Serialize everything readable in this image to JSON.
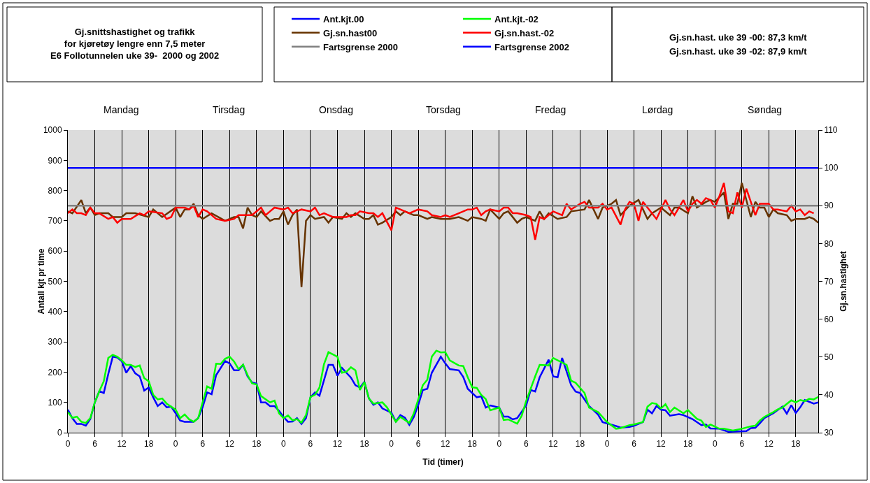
{
  "chart_data": {
    "type": "line",
    "title": "Gj.snittshastighet og trafikk\nfor kjøretøy lengre enn 7,5 meter\nE6 Follotunnelen uke 39-  2000 og 2002",
    "xlabel": "Tid (timer)",
    "ylabel": "Antall kjt pr time",
    "y2label": "Gj.sn.hastighet",
    "annotations": [
      "Gj.sn.hast. uke 39 -00: 87,3 km/t",
      "Gj.sn.hast. uke 39 -02: 87,9 km/t",
      "Mandag",
      "Tirsdag",
      "Onsdag",
      "Torsdag",
      "Fredag",
      "Lørdag",
      "Søndag"
    ],
    "xlim": [
      "--09-25T00:00",
      "--10-01T23:00"
    ],
    "xticks": [
      {
        "value": "--09-25T00:00",
        "label": "0"
      },
      {
        "value": "--09-25T06:00",
        "label": "6"
      },
      {
        "value": "--09-25T12:00",
        "label": "12"
      },
      {
        "value": "--09-25T18:00",
        "label": "18"
      },
      {
        "value": "--09-26T00:00",
        "label": "0"
      },
      {
        "value": "--09-26T06:00",
        "label": "6"
      },
      {
        "value": "--09-26T12:00",
        "label": "12"
      },
      {
        "value": "--09-26T18:00",
        "label": "18"
      },
      {
        "value": "--09-27T00:00",
        "label": "0"
      },
      {
        "value": "--09-27T06:00",
        "label": "6"
      },
      {
        "value": "--09-27T12:00",
        "label": "12"
      },
      {
        "value": "--09-27T18:00",
        "label": "18"
      },
      {
        "value": "--09-28T00:00",
        "label": "0"
      },
      {
        "value": "--09-28T06:00",
        "label": "6"
      },
      {
        "value": "--09-28T12:00",
        "label": "12"
      },
      {
        "value": "--09-28T18:00",
        "label": "18"
      },
      {
        "value": "--09-29T00:00",
        "label": "0"
      },
      {
        "value": "--09-29T06:00",
        "label": "6"
      },
      {
        "value": "--09-29T12:00",
        "label": "12"
      },
      {
        "value": "--09-29T18:00",
        "label": "18"
      },
      {
        "value": "--09-30T00:00",
        "label": "0"
      },
      {
        "value": "--09-30T06:00",
        "label": "6"
      },
      {
        "value": "--09-30T12:00",
        "label": "12"
      },
      {
        "value": "--09-30T18:00",
        "label": "18"
      },
      {
        "value": "--10-01T00:00",
        "label": "0"
      },
      {
        "value": "--10-01T06:00",
        "label": "6"
      },
      {
        "value": "--10-01T12:00",
        "label": "12"
      },
      {
        "value": "--10-01T18:00",
        "label": "18"
      }
    ],
    "ylim": [
      0,
      1000
    ],
    "yticks": [
      0,
      100,
      200,
      300,
      400,
      500,
      600,
      700,
      800,
      900,
      1000
    ],
    "y2lim": [
      30,
      110
    ],
    "y2ticks": [
      30,
      40,
      50,
      60,
      70,
      80,
      90,
      100,
      110
    ],
    "grid": "x",
    "legend": "top",
    "series": [
      {
        "name": "Ant.kjt.00",
        "color": "#0000ff",
        "x": [
          "--09-25T00:00",
          "--09-25T01:00",
          "--09-25T02:00",
          "--09-25T03:00",
          "--09-25T04:00",
          "--09-25T05:00",
          "--09-25T06:00",
          "--09-25T07:00",
          "--09-25T08:00",
          "--09-25T09:00",
          "--09-25T10:00",
          "--09-25T11:00",
          "--09-25T12:00",
          "--09-25T13:00",
          "--09-25T14:00",
          "--09-25T15:00",
          "--09-25T16:00",
          "--09-25T17:00",
          "--09-25T18:00",
          "--09-25T19:00",
          "--09-25T20:00",
          "--09-25T21:00",
          "--09-25T22:00",
          "--09-25T23:00",
          "--09-26T00:00",
          "--09-26T01:00",
          "--09-26T02:00",
          "--09-26T04:00",
          "--09-26T05:00",
          "--09-26T06:00",
          "--09-26T07:00",
          "--09-26T08:00",
          "--09-26T09:00",
          "--09-26T11:00",
          "--09-26T12:00",
          "--09-26T13:00",
          "--09-26T14:00",
          "--09-26T15:00",
          "--09-26T16:00",
          "--09-26T17:00",
          "--09-26T18:00",
          "--09-26T19:00",
          "--09-26T20:00",
          "--09-26T21:00",
          "--09-26T22:00",
          "--09-26T23:00",
          "--09-27T00:00",
          "--09-27T01:00",
          "--09-27T02:00",
          "--09-27T03:00",
          "--09-27T04:00",
          "--09-27T05:00",
          "--09-27T06:00",
          "--09-27T07:00",
          "--09-27T08:00",
          "--09-27T10:00",
          "--09-27T11:00",
          "--09-27T12:00",
          "--09-27T13:00",
          "--09-27T15:00",
          "--09-27T16:00",
          "--09-27T17:00",
          "--09-27T18:00",
          "--09-27T19:00",
          "--09-27T20:00",
          "--09-27T21:00",
          "--09-27T22:00",
          "--09-28T00:00",
          "--09-28T01:00",
          "--09-28T02:00",
          "--09-28T03:00",
          "--09-28T04:00",
          "--09-28T05:00",
          "--09-28T06:00",
          "--09-28T07:00",
          "--09-28T08:00",
          "--09-28T09:00",
          "--09-28T11:00",
          "--09-28T12:00",
          "--09-28T13:00",
          "--09-28T15:00",
          "--09-28T16:00",
          "--09-28T17:00",
          "--09-28T19:00",
          "--09-28T20:00",
          "--09-28T21:00",
          "--09-28T22:00",
          "--09-29T00:00",
          "--09-29T01:00",
          "--09-29T02:00",
          "--09-29T03:00",
          "--09-29T04:00",
          "--09-29T06:00",
          "--09-29T07:00",
          "--09-29T08:00",
          "--09-29T09:00",
          "--09-29T11:00",
          "--09-29T12:00",
          "--09-29T13:00",
          "--09-29T14:00",
          "--09-29T16:00",
          "--09-29T17:00",
          "--09-29T18:00",
          "--09-29T20:00",
          "--09-29T22:00",
          "--09-29T23:00",
          "--09-30T02:00",
          "--09-30T03:00",
          "--09-30T05:00",
          "--09-30T06:00",
          "--09-30T08:00",
          "--09-30T09:00",
          "--09-30T10:00",
          "--09-30T11:00",
          "--09-30T12:00",
          "--09-30T13:00",
          "--09-30T14:00",
          "--09-30T16:00",
          "--09-30T17:00",
          "--09-30T19:00",
          "--09-30T21:00",
          "--09-30T22:00",
          "--09-30T23:00",
          "--10-01T01:00",
          "--10-01T03:00",
          "--10-01T07:00",
          "--10-01T08:00",
          "--10-01T09:00",
          "--10-01T10:00",
          "--10-01T11:00",
          "--10-01T13:00",
          "--10-01T15:00",
          "--10-01T16:00",
          "--10-01T17:00",
          "--10-01T18:00",
          "--10-01T19:00",
          "--10-01T20:00",
          "--10-01T22:00",
          "--10-01T23:00"
        ],
        "values": [
          76,
          48,
          29,
          29,
          23,
          45,
          100,
          137,
          131,
          194,
          251,
          248,
          236,
          198,
          220,
          196,
          186,
          139,
          149,
          117,
          88,
          100,
          84,
          86,
          64,
          40,
          36,
          36,
          48,
          84,
          133,
          127,
          190,
          237,
          229,
          206,
          206,
          224,
          186,
          166,
          162,
          100,
          100,
          88,
          88,
          72,
          52,
          36,
          37,
          48,
          29,
          48,
          117,
          133,
          122,
          224,
          224,
          188,
          214,
          182,
          157,
          149,
          168,
          113,
          92,
          100,
          80,
          66,
          37,
          58,
          50,
          26,
          52,
          92,
          141,
          145,
          198,
          251,
          229,
          210,
          206,
          184,
          145,
          117,
          120,
          83,
          90,
          83,
          53,
          53,
          44,
          48,
          90,
          141,
          136,
          183,
          241,
          186,
          183,
          247,
          157,
          136,
          131,
          88,
          60,
          35,
          22,
          17,
          19,
          23,
          35,
          76,
          64,
          88,
          76,
          74,
          56,
          61,
          58,
          45,
          25,
          27,
          14,
          13,
          3,
          5,
          15,
          16,
          31,
          48,
          64,
          86,
          63,
          91,
          65,
          84,
          108,
          96,
          100
        ]
      },
      {
        "name": "Ant.kjt.-02",
        "color": "#00ff00",
        "x": [
          "--09-25T00:00",
          "--09-25T01:00",
          "--09-25T02:00",
          "--09-25T03:00",
          "--09-25T04:00",
          "--09-25T05:00",
          "--09-25T06:00",
          "--09-25T07:00",
          "--09-25T08:00",
          "--09-25T09:00",
          "--09-25T10:00",
          "--09-25T11:00",
          "--09-25T12:00",
          "--09-25T13:00",
          "--09-25T14:00",
          "--09-25T15:00",
          "--09-25T16:00",
          "--09-25T17:00",
          "--09-25T18:00",
          "--09-25T19:00",
          "--09-25T20:00",
          "--09-25T21:00",
          "--09-25T22:00",
          "--09-26T00:00",
          "--09-26T01:00",
          "--09-26T02:00",
          "--09-26T03:00",
          "--09-26T04:00",
          "--09-26T05:00",
          "--09-26T07:00",
          "--09-26T08:00",
          "--09-26T09:00",
          "--09-26T10:00",
          "--09-26T11:00",
          "--09-26T12:00",
          "--09-26T13:00",
          "--09-26T14:00",
          "--09-26T15:00",
          "--09-26T16:00",
          "--09-26T17:00",
          "--09-26T18:00",
          "--09-26T19:00",
          "--09-26T21:00",
          "--09-26T22:00",
          "--09-26T23:00",
          "--09-27T00:00",
          "--09-27T01:00",
          "--09-27T02:00",
          "--09-27T03:00",
          "--09-27T04:00",
          "--09-27T05:00",
          "--09-27T06:00",
          "--09-27T07:00",
          "--09-27T08:00",
          "--09-27T09:00",
          "--09-27T10:00",
          "--09-27T12:00",
          "--09-27T13:00",
          "--09-27T14:00",
          "--09-27T15:00",
          "--09-27T16:00",
          "--09-27T17:00",
          "--09-27T18:00",
          "--09-27T19:00",
          "--09-27T20:00",
          "--09-27T22:00",
          "--09-27T23:00",
          "--09-28T01:00",
          "--09-28T02:00",
          "--09-28T04:00",
          "--09-28T05:00",
          "--09-28T07:00",
          "--09-28T08:00",
          "--09-28T09:00",
          "--09-28T10:00",
          "--09-28T11:00",
          "--09-28T12:00",
          "--09-28T13:00",
          "--09-28T15:00",
          "--09-28T16:00",
          "--09-28T17:00",
          "--09-28T18:00",
          "--09-28T19:00",
          "--09-28T20:00",
          "--09-28T21:00",
          "--09-28T22:00",
          "--09-29T00:00",
          "--09-29T01:00",
          "--09-29T02:00",
          "--09-29T04:00",
          "--09-29T05:00",
          "--09-29T06:00",
          "--09-29T08:00",
          "--09-29T09:00",
          "--09-29T11:00",
          "--09-29T12:00",
          "--09-29T15:00",
          "--09-29T16:00",
          "--09-29T17:00",
          "--09-29T19:00",
          "--09-29T20:00",
          "--09-29T22:00",
          "--09-29T23:00",
          "--09-30T00:00",
          "--09-30T02:00",
          "--09-30T03:00",
          "--09-30T05:00",
          "--09-30T06:00",
          "--09-30T08:00",
          "--09-30T09:00",
          "--09-30T10:00",
          "--09-30T11:00",
          "--09-30T12:00",
          "--09-30T13:00",
          "--09-30T14:00",
          "--09-30T15:00",
          "--09-30T17:00",
          "--09-30T18:00",
          "--09-30T20:00",
          "--09-30T21:00",
          "--09-30T22:00",
          "--09-30T23:00",
          "--10-01T01:00",
          "--10-01T02:00",
          "--10-01T04:00",
          "--10-01T06:00",
          "--10-01T08:00",
          "--10-01T09:00",
          "--10-01T10:00",
          "--10-01T11:00",
          "--10-01T13:00",
          "--10-01T14:00",
          "--10-01T15:00",
          "--10-01T17:00",
          "--10-01T18:00",
          "--10-01T19:00",
          "--10-01T20:00",
          "--10-01T21:00",
          "--10-01T22:00",
          "--10-01T23:00"
        ],
        "values": [
          68,
          49,
          53,
          36,
          32,
          48,
          100,
          137,
          170,
          247,
          257,
          251,
          239,
          224,
          224,
          217,
          222,
          180,
          170,
          125,
          110,
          113,
          96,
          76,
          48,
          60,
          44,
          36,
          48,
          153,
          145,
          228,
          227,
          244,
          251,
          235,
          210,
          225,
          190,
          163,
          159,
          121,
          100,
          106,
          64,
          48,
          57,
          41,
          45,
          33,
          58,
          118,
          125,
          149,
          226,
          266,
          251,
          198,
          201,
          216,
          206,
          141,
          167,
          113,
          96,
          100,
          84,
          36,
          52,
          32,
          64,
          157,
          175,
          251,
          271,
          265,
          266,
          239,
          222,
          220,
          183,
          150,
          148,
          125,
          111,
          74,
          83,
          42,
          44,
          30,
          56,
          105,
          186,
          224,
          222,
          247,
          224,
          172,
          165,
          131,
          83,
          68,
          52,
          35,
          13,
          15,
          25,
          27,
          35,
          86,
          98,
          95,
          80,
          94,
          68,
          83,
          64,
          75,
          46,
          40,
          19,
          27,
          13,
          13,
          7,
          13,
          21,
          23,
          40,
          52,
          68,
          77,
          83,
          107,
          100,
          108,
          104,
          112,
          110,
          118
        ]
      },
      {
        "name": "Gj.sn.hast00",
        "color": "#663300",
        "axis": "y2",
        "x": [
          "--09-25T00:00",
          "--09-25T01:00",
          "--09-25T03:00",
          "--09-25T04:00",
          "--09-25T05:00",
          "--09-25T06:00",
          "--09-25T07:00",
          "--09-25T09:00",
          "--09-25T10:00",
          "--09-25T12:00",
          "--09-25T13:00",
          "--09-25T15:00",
          "--09-25T18:00",
          "--09-25T19:00",
          "--09-25T21:00",
          "--09-26T00:00",
          "--09-26T01:00",
          "--09-26T02:00",
          "--09-26T03:00",
          "--09-26T04:00",
          "--09-26T05:00",
          "--09-26T06:00",
          "--09-26T08:00",
          "--09-26T11:00",
          "--09-26T13:00",
          "--09-26T14:00",
          "--09-26T15:00",
          "--09-26T16:00",
          "--09-26T17:00",
          "--09-26T18:00",
          "--09-26T19:00",
          "--09-26T21:00",
          "--09-26T22:00",
          "--09-26T23:00",
          "--09-27T00:00",
          "--09-27T01:00",
          "--09-27T02:00",
          "--09-27T03:00",
          "--09-27T04:00",
          "--09-27T05:00",
          "--09-27T06:00",
          "--09-27T07:00",
          "--09-27T09:00",
          "--09-27T10:00",
          "--09-27T11:00",
          "--09-27T13:00",
          "--09-27T14:00",
          "--09-27T15:00",
          "--09-27T16:00",
          "--09-27T18:00",
          "--09-27T19:00",
          "--09-27T20:00",
          "--09-27T21:00",
          "--09-27T22:00",
          "--09-28T00:00",
          "--09-28T01:00",
          "--09-28T02:00",
          "--09-28T03:00",
          "--09-28T05:00",
          "--09-28T06:00",
          "--09-28T08:00",
          "--09-28T09:00",
          "--09-28T11:00",
          "--09-28T13:00",
          "--09-28T15:00",
          "--09-28T17:00",
          "--09-28T18:00",
          "--09-28T20:00",
          "--09-28T21:00",
          "--09-28T22:00",
          "--09-29T00:00",
          "--09-29T01:00",
          "--09-29T02:00",
          "--09-29T04:00",
          "--09-29T05:00",
          "--09-29T06:00",
          "--09-29T08:00",
          "--09-29T09:00",
          "--09-29T10:00",
          "--09-29T11:00",
          "--09-29T13:00",
          "--09-29T15:00",
          "--09-29T16:00",
          "--09-29T19:00",
          "--09-29T20:00",
          "--09-29T22:00",
          "--09-29T23:00",
          "--09-30T01:00",
          "--09-30T02:00",
          "--09-30T03:00",
          "--09-30T05:00",
          "--09-30T07:00",
          "--09-30T08:00",
          "--09-30T09:00",
          "--09-30T10:00",
          "--09-30T12:00",
          "--09-30T14:00",
          "--09-30T15:00",
          "--09-30T16:00",
          "--09-30T18:00",
          "--09-30T19:00",
          "--09-30T20:00",
          "--09-30T22:00",
          "--09-30T23:00",
          "--10-01T00:00",
          "--10-01T02:00",
          "--10-01T03:00",
          "--10-01T04:00",
          "--10-01T05:00",
          "--10-01T06:00",
          "--10-01T08:00",
          "--10-01T09:00",
          "--10-01T10:00",
          "--10-01T11:00",
          "--10-01T12:00",
          "--10-01T13:00",
          "--10-01T14:00",
          "--10-01T16:00",
          "--10-01T17:00",
          "--10-01T18:00",
          "--10-01T20:00",
          "--10-01T21:00",
          "--10-01T22:00",
          "--10-01T23:00"
        ],
        "values": [
          88.5,
          88,
          91.5,
          88,
          89.5,
          87.5,
          88,
          88,
          87,
          87,
          88,
          88,
          87,
          89,
          87,
          89.5,
          87,
          89,
          89,
          90.5,
          87.5,
          86.5,
          88,
          86,
          87,
          87,
          84,
          89.5,
          87.5,
          87,
          88.5,
          86,
          86.5,
          86.5,
          88.5,
          85,
          87.5,
          89,
          68.5,
          86,
          87.5,
          86.5,
          87,
          85.5,
          87,
          86.5,
          88,
          87,
          88,
          86.5,
          86.5,
          87.5,
          85,
          85.5,
          87,
          88.5,
          87.5,
          88.5,
          87.5,
          87.5,
          86.5,
          87,
          86.5,
          86.5,
          87,
          86,
          87,
          86.5,
          86,
          89,
          86.5,
          88,
          88.5,
          85.5,
          86.5,
          87,
          86,
          88.5,
          86.5,
          88,
          86.5,
          87,
          88.5,
          89,
          91.5,
          86.5,
          89.5,
          90.5,
          91.5,
          87.5,
          90,
          91.5,
          89,
          86.5,
          88,
          89.5,
          87.5,
          89.5,
          89.5,
          88,
          92.5,
          89.5,
          91,
          91.5,
          91,
          93.5,
          86.5,
          90.5,
          90.5,
          96,
          87,
          91,
          89.5,
          89.5,
          87,
          89,
          88,
          87.5,
          86,
          86.5,
          86.5,
          87,
          86.5,
          85.5
        ]
      },
      {
        "name": "Gj.sn.hast.-02",
        "color": "#ff0000",
        "axis": "y2",
        "x": [
          "--09-25T00:00",
          "--09-25T01:00",
          "--09-25T02:00",
          "--09-25T03:00",
          "--09-25T04:00",
          "--09-25T05:00",
          "--09-25T06:00",
          "--09-25T07:00",
          "--09-25T09:00",
          "--09-25T10:00",
          "--09-25T11:00",
          "--09-25T12:00",
          "--09-25T14:00",
          "--09-25T16:00",
          "--09-25T17:00",
          "--09-25T18:00",
          "--09-25T21:00",
          "--09-25T22:00",
          "--09-25T23:00",
          "--09-26T00:00",
          "--09-26T02:00",
          "--09-26T03:00",
          "--09-26T04:00",
          "--09-26T05:00",
          "--09-26T06:00",
          "--09-26T07:00",
          "--09-26T09:00",
          "--09-26T11:00",
          "--09-26T13:00",
          "--09-26T14:00",
          "--09-26T15:00",
          "--09-26T17:00",
          "--09-26T19:00",
          "--09-26T20:00",
          "--09-26T21:00",
          "--09-26T22:00",
          "--09-27T00:00",
          "--09-27T01:00",
          "--09-27T02:00",
          "--09-27T04:00",
          "--09-27T06:00",
          "--09-27T07:00",
          "--09-27T08:00",
          "--09-27T09:00",
          "--09-27T11:00",
          "--09-27T13:00",
          "--09-27T14:00",
          "--09-27T15:00",
          "--09-27T16:00",
          "--09-27T17:00",
          "--09-27T19:00",
          "--09-27T20:00",
          "--09-27T21:00",
          "--09-27T22:00",
          "--09-28T00:00",
          "--09-28T01:00",
          "--09-28T02:00",
          "--09-28T04:00",
          "--09-28T06:00",
          "--09-28T08:00",
          "--09-28T09:00",
          "--09-28T11:00",
          "--09-28T12:00",
          "--09-28T13:00",
          "--09-28T15:00",
          "--09-28T17:00",
          "--09-28T18:00",
          "--09-28T19:00",
          "--09-28T20:00",
          "--09-28T21:00",
          "--09-28T22:00",
          "--09-29T00:00",
          "--09-29T01:00",
          "--09-29T02:00",
          "--09-29T03:00",
          "--09-29T04:00",
          "--09-29T06:00",
          "--09-29T07:00",
          "--09-29T08:00",
          "--09-29T09:00",
          "--09-29T10:00",
          "--09-29T11:00",
          "--09-29T12:00",
          "--09-29T14:00",
          "--09-29T15:00",
          "--09-29T16:00",
          "--09-29T18:00",
          "--09-29T19:00",
          "--09-29T20:00",
          "--09-29T22:00",
          "--09-29T23:00",
          "--09-30T00:00",
          "--09-30T01:00",
          "--09-30T03:00",
          "--09-30T04:00",
          "--09-30T05:00",
          "--09-30T06:00",
          "--09-30T07:00",
          "--09-30T08:00",
          "--09-30T09:00",
          "--09-30T11:00",
          "--09-30T13:00",
          "--09-30T14:00",
          "--09-30T15:00",
          "--09-30T17:00",
          "--09-30T18:00",
          "--09-30T19:00",
          "--09-30T20:00",
          "--09-30T21:00",
          "--09-30T22:00",
          "--09-30T23:00",
          "--10-01T00:00",
          "--10-01T01:00",
          "--10-01T02:00",
          "--10-01T03:00",
          "--10-01T04:00",
          "--10-01T05:00",
          "--10-01T06:00",
          "--10-01T07:00",
          "--10-01T09:00",
          "--10-01T10:00",
          "--10-01T12:00",
          "--10-01T13:00",
          "--10-01T14:00",
          "--10-01T16:00",
          "--10-01T17:00",
          "--10-01T18:00",
          "--10-01T19:00",
          "--10-01T20:00",
          "--10-01T21:00",
          "--10-01T22:00"
        ],
        "values": [
          88,
          89,
          88,
          88,
          87.5,
          89.5,
          88,
          88,
          86.5,
          87,
          85.5,
          86.5,
          86.5,
          88,
          87.5,
          88.5,
          88,
          86.5,
          87,
          89.5,
          89.5,
          89,
          90,
          87,
          89,
          88.5,
          86.5,
          86,
          86.5,
          87.5,
          87.5,
          87.5,
          89.5,
          87.5,
          88.5,
          89.5,
          89,
          89.5,
          88,
          89,
          88.5,
          89.5,
          87.5,
          88,
          87,
          87,
          87,
          87.5,
          87.5,
          88.5,
          88,
          88,
          87,
          88,
          83.5,
          89.5,
          89,
          88,
          89,
          88.5,
          87.5,
          87,
          87.5,
          87,
          88,
          89,
          89,
          89.5,
          87.5,
          88.5,
          89,
          88.5,
          89.5,
          89.5,
          88,
          88,
          87.5,
          87,
          81,
          87,
          86.5,
          87.5,
          88.5,
          87.5,
          90.5,
          89,
          90.5,
          91,
          89.5,
          89.5,
          90.5,
          89,
          89.5,
          85,
          89,
          91,
          90.5,
          86,
          91,
          89.5,
          86.5,
          91.5,
          89,
          87.5,
          91.5,
          88.5,
          90.5,
          91.5,
          90.5,
          92,
          91.5,
          89.5,
          92.5,
          96,
          88.5,
          88,
          93.5,
          89.5,
          94.5,
          87.5,
          90.5,
          90.5,
          89,
          89,
          88.5,
          90,
          88.5,
          89,
          87.5,
          88.5,
          88
        ]
      },
      {
        "name": "Fartsgrense 2000",
        "color": "#808080",
        "axis": "y2",
        "x": [
          "--09-25T00:00",
          "--10-01T23:00"
        ],
        "values": [
          90,
          90
        ]
      },
      {
        "name": "Fartsgrense 2002",
        "color": "#0000ff",
        "axis": "y2",
        "x": [
          "--09-25T00:00",
          "--10-01T23:00"
        ],
        "values": [
          100,
          100
        ]
      }
    ]
  }
}
